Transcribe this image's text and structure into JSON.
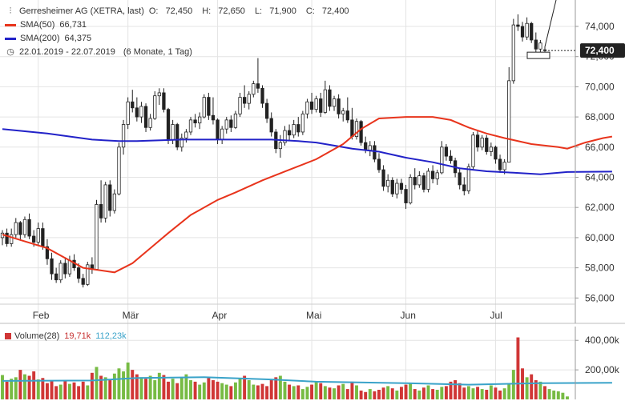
{
  "legend": {
    "title": "Gerresheimer AG (XETRA, last)",
    "o_label": "O:",
    "o_value": "72,450",
    "h_label": "H:",
    "h_value": "72,650",
    "l_label": "L:",
    "l_value": "71,900",
    "c_label": "C:",
    "c_value": "72,400",
    "sma50_label": "SMA(50)",
    "sma50_value": "66,731",
    "sma200_label": "SMA(200)",
    "sma200_value": "64,375",
    "range_label": "22.01.2019 - 22.07.2019",
    "period_label": "(6 Monate, 1 Tag)"
  },
  "volume_legend": {
    "label": "Volume(28)",
    "v1": "19,71k",
    "v2": "112,23k"
  },
  "last_price_label": "72,400",
  "colors": {
    "up": "#7fb043",
    "down": "#d43c3c",
    "sma50": "#e8341c",
    "sma200": "#2222c8",
    "vol_up": "#77bb44",
    "vol_down": "#d03636",
    "vol_ma": "#3aa3c9"
  },
  "chart_data": [
    {
      "type": "candlestick",
      "title": "Gerresheimer AG (XETRA, last)",
      "x_range": [
        "22.01.2019",
        "22.07.2019"
      ],
      "x_ticks": [
        "Feb",
        "Mär",
        "Apr",
        "Mai",
        "Jun",
        "Jul"
      ],
      "y_ticks": [
        "56,000",
        "58,000",
        "60,000",
        "62,000",
        "64,000",
        "66,000",
        "68,000",
        "70,000",
        "72,000",
        "74,000"
      ],
      "ylim": [
        55,
        75.5
      ],
      "grid": true,
      "legend_position": "top-left",
      "candles": [
        [
          60.0,
          60.5,
          59.5,
          60.3
        ],
        [
          60.3,
          60.6,
          59.4,
          59.6
        ],
        [
          59.6,
          60.6,
          59.4,
          60.2
        ],
        [
          60.2,
          61.3,
          60.0,
          61.0
        ],
        [
          61.0,
          61.1,
          59.8,
          60.2
        ],
        [
          60.2,
          61.4,
          60.0,
          61.2
        ],
        [
          61.2,
          61.6,
          59.9,
          60.1
        ],
        [
          60.1,
          60.5,
          59.4,
          59.7
        ],
        [
          59.7,
          61.0,
          59.5,
          60.6
        ],
        [
          60.6,
          61.0,
          59.2,
          59.4
        ],
        [
          59.4,
          59.9,
          58.2,
          58.6
        ],
        [
          58.6,
          59.0,
          57.2,
          57.6
        ],
        [
          57.6,
          58.0,
          57.0,
          57.2
        ],
        [
          57.2,
          58.5,
          57.0,
          58.3
        ],
        [
          58.3,
          58.7,
          57.3,
          57.6
        ],
        [
          57.6,
          58.8,
          57.4,
          58.5
        ],
        [
          58.5,
          58.9,
          57.8,
          58.0
        ],
        [
          58.0,
          58.3,
          57.0,
          57.3
        ],
        [
          57.3,
          57.6,
          56.7,
          56.9
        ],
        [
          56.9,
          58.4,
          56.8,
          58.2
        ],
        [
          58.2,
          58.7,
          57.6,
          57.9
        ],
        [
          57.9,
          62.5,
          57.9,
          62.2
        ],
        [
          62.2,
          63.8,
          61.0,
          61.3
        ],
        [
          61.3,
          63.7,
          61.0,
          63.5
        ],
        [
          63.5,
          63.8,
          61.4,
          61.8
        ],
        [
          61.8,
          63.2,
          61.6,
          62.9
        ],
        [
          62.9,
          66.3,
          62.8,
          66.0
        ],
        [
          66.0,
          67.8,
          65.5,
          67.5
        ],
        [
          67.5,
          69.3,
          67.2,
          69.0
        ],
        [
          69.0,
          69.8,
          68.3,
          68.6
        ],
        [
          68.6,
          69.3,
          67.7,
          68.0
        ],
        [
          68.0,
          69.0,
          67.6,
          68.7
        ],
        [
          68.7,
          68.9,
          67.0,
          67.3
        ],
        [
          67.3,
          68.2,
          67.1,
          67.9
        ],
        [
          67.9,
          69.7,
          67.8,
          69.4
        ],
        [
          69.4,
          69.9,
          68.8,
          69.6
        ],
        [
          69.6,
          69.9,
          68.3,
          68.5
        ],
        [
          68.5,
          68.6,
          66.2,
          66.5
        ],
        [
          66.5,
          67.8,
          66.2,
          67.5
        ],
        [
          67.5,
          67.6,
          65.8,
          66.0
        ],
        [
          66.0,
          66.9,
          65.7,
          66.6
        ],
        [
          66.6,
          67.2,
          66.3,
          67.0
        ],
        [
          67.0,
          68.0,
          66.8,
          67.8
        ],
        [
          67.8,
          68.2,
          67.3,
          67.6
        ],
        [
          67.6,
          68.3,
          67.2,
          68.0
        ],
        [
          68.0,
          69.5,
          67.9,
          69.3
        ],
        [
          69.3,
          69.6,
          67.8,
          68.1
        ],
        [
          68.1,
          69.3,
          67.5,
          67.8
        ],
        [
          67.8,
          67.9,
          66.2,
          66.5
        ],
        [
          66.5,
          67.4,
          66.2,
          67.2
        ],
        [
          67.2,
          68.0,
          66.9,
          67.8
        ],
        [
          67.8,
          68.1,
          67.0,
          67.3
        ],
        [
          67.3,
          68.4,
          67.2,
          68.2
        ],
        [
          68.2,
          69.6,
          68.0,
          69.3
        ],
        [
          69.3,
          70.1,
          68.6,
          68.9
        ],
        [
          68.9,
          69.7,
          68.5,
          69.5
        ],
        [
          69.5,
          70.4,
          69.3,
          70.2
        ],
        [
          70.2,
          71.9,
          69.6,
          69.9
        ],
        [
          69.9,
          70.1,
          68.6,
          68.9
        ],
        [
          68.9,
          69.2,
          67.6,
          67.9
        ],
        [
          67.9,
          68.3,
          66.7,
          67.0
        ],
        [
          67.0,
          67.2,
          65.6,
          65.9
        ],
        [
          65.9,
          66.8,
          65.3,
          66.3
        ],
        [
          66.3,
          67.4,
          66.1,
          67.1
        ],
        [
          67.1,
          67.5,
          66.4,
          66.8
        ],
        [
          66.8,
          67.8,
          66.6,
          67.5
        ],
        [
          67.5,
          68.0,
          66.7,
          67.0
        ],
        [
          67.0,
          68.4,
          66.8,
          68.2
        ],
        [
          68.2,
          69.2,
          67.9,
          69.0
        ],
        [
          69.0,
          69.6,
          68.2,
          68.5
        ],
        [
          68.5,
          69.4,
          68.3,
          69.2
        ],
        [
          69.2,
          69.6,
          68.0,
          68.3
        ],
        [
          68.3,
          70.4,
          68.2,
          69.8
        ],
        [
          69.8,
          70.1,
          68.4,
          68.7
        ],
        [
          68.7,
          69.4,
          68.4,
          69.2
        ],
        [
          69.2,
          69.5,
          67.9,
          68.2
        ],
        [
          68.2,
          68.6,
          67.7,
          68.4
        ],
        [
          68.4,
          69.3,
          67.6,
          67.8
        ],
        [
          67.8,
          68.6,
          66.5,
          66.7
        ],
        [
          66.7,
          67.9,
          66.5,
          67.7
        ],
        [
          67.7,
          67.8,
          66.1,
          66.3
        ],
        [
          66.3,
          66.7,
          65.6,
          65.8
        ],
        [
          65.8,
          66.4,
          65.4,
          66.1
        ],
        [
          66.1,
          66.4,
          65.0,
          65.2
        ],
        [
          65.2,
          65.6,
          64.3,
          64.5
        ],
        [
          64.5,
          64.8,
          63.1,
          63.4
        ],
        [
          63.4,
          64.2,
          63.0,
          63.8
        ],
        [
          63.8,
          64.0,
          62.7,
          62.9
        ],
        [
          62.9,
          63.9,
          62.6,
          63.6
        ],
        [
          63.6,
          63.9,
          62.9,
          63.2
        ],
        [
          63.2,
          63.5,
          61.9,
          62.3
        ],
        [
          62.3,
          64.2,
          62.2,
          64.0
        ],
        [
          64.0,
          64.6,
          63.2,
          63.5
        ],
        [
          63.5,
          64.4,
          63.3,
          64.1
        ],
        [
          64.1,
          64.3,
          63.0,
          63.2
        ],
        [
          63.2,
          64.6,
          63.0,
          64.4
        ],
        [
          64.4,
          64.8,
          63.6,
          63.9
        ],
        [
          63.9,
          64.5,
          63.5,
          64.3
        ],
        [
          64.3,
          66.4,
          64.2,
          66.0
        ],
        [
          66.0,
          66.2,
          65.1,
          65.4
        ],
        [
          65.4,
          65.8,
          64.9,
          65.1
        ],
        [
          65.1,
          65.3,
          64.0,
          64.3
        ],
        [
          64.3,
          64.6,
          63.2,
          63.5
        ],
        [
          63.5,
          64.0,
          62.8,
          63.1
        ],
        [
          63.1,
          64.9,
          62.9,
          64.7
        ],
        [
          64.7,
          67.0,
          64.5,
          66.8
        ],
        [
          66.8,
          67.1,
          65.7,
          66.0
        ],
        [
          66.0,
          66.8,
          65.8,
          66.6
        ],
        [
          66.6,
          66.8,
          65.5,
          65.7
        ],
        [
          65.7,
          66.3,
          65.4,
          66.0
        ],
        [
          66.0,
          66.1,
          64.9,
          65.2
        ],
        [
          65.2,
          65.5,
          64.3,
          64.5
        ],
        [
          64.5,
          65.2,
          64.2,
          65.0
        ],
        [
          65.0,
          71.3,
          65.0,
          70.4
        ],
        [
          70.4,
          74.5,
          70.2,
          74.1
        ],
        [
          74.1,
          74.8,
          73.7,
          74.0
        ],
        [
          74.0,
          74.3,
          73.0,
          73.3
        ],
        [
          73.3,
          74.6,
          73.1,
          74.2
        ],
        [
          74.2,
          74.3,
          72.9,
          73.1
        ],
        [
          73.1,
          73.6,
          72.3,
          72.5
        ],
        [
          72.5,
          73.1,
          72.3,
          72.9
        ],
        [
          72.45,
          72.65,
          71.9,
          72.4
        ]
      ],
      "sma50": [
        [
          0,
          60.2
        ],
        [
          10,
          59.3
        ],
        [
          18,
          58.0
        ],
        [
          25,
          57.7
        ],
        [
          29,
          58.3
        ],
        [
          33,
          59.3
        ],
        [
          37,
          60.3
        ],
        [
          42,
          61.5
        ],
        [
          48,
          62.5
        ],
        [
          52,
          63.0
        ],
        [
          58,
          63.8
        ],
        [
          64,
          64.5
        ],
        [
          70,
          65.2
        ],
        [
          76,
          66.2
        ],
        [
          80,
          67.2
        ],
        [
          84,
          67.9
        ],
        [
          90,
          68.0
        ],
        [
          96,
          68.0
        ],
        [
          100,
          67.8
        ],
        [
          104,
          67.3
        ],
        [
          108,
          66.9
        ],
        [
          112,
          66.6
        ],
        [
          118,
          66.2
        ],
        [
          124,
          66.0
        ],
        [
          126,
          65.9
        ],
        [
          130,
          66.3
        ],
        [
          134,
          66.6
        ],
        [
          136,
          66.7
        ]
      ],
      "sma200": [
        [
          0,
          67.2
        ],
        [
          10,
          66.9
        ],
        [
          20,
          66.5
        ],
        [
          26,
          66.4
        ],
        [
          30,
          66.4
        ],
        [
          40,
          66.5
        ],
        [
          50,
          66.5
        ],
        [
          60,
          66.5
        ],
        [
          66,
          66.4
        ],
        [
          70,
          66.3
        ],
        [
          74,
          66.1
        ],
        [
          78,
          65.9
        ],
        [
          84,
          65.7
        ],
        [
          90,
          65.3
        ],
        [
          96,
          65.0
        ],
        [
          102,
          64.6
        ],
        [
          108,
          64.4
        ],
        [
          114,
          64.3
        ],
        [
          120,
          64.2
        ],
        [
          126,
          64.35
        ],
        [
          136,
          64.375
        ]
      ]
    },
    {
      "type": "bar",
      "title": "Volume(28)",
      "y_ticks": [
        "200,00k",
        "400,00k"
      ],
      "ylim": [
        0,
        450
      ],
      "unit": "k",
      "values": [
        165,
        120,
        140,
        150,
        200,
        170,
        160,
        190,
        135,
        145,
        110,
        125,
        90,
        100,
        130,
        105,
        115,
        90,
        120,
        95,
        180,
        220,
        160,
        150,
        130,
        175,
        210,
        190,
        250,
        200,
        170,
        150,
        140,
        160,
        130,
        180,
        165,
        120,
        140,
        110,
        150,
        170,
        130,
        120,
        100,
        115,
        145,
        130,
        120,
        110,
        100,
        90,
        115,
        140,
        160,
        130,
        100,
        95,
        105,
        90,
        130,
        150,
        160,
        120,
        100,
        90,
        95,
        70,
        85,
        100,
        120,
        110,
        90,
        80,
        75,
        95,
        105,
        70,
        120,
        95,
        60,
        50,
        70,
        55,
        65,
        80,
        90,
        75,
        60,
        85,
        100,
        110,
        70,
        60,
        80,
        95,
        70,
        65,
        85,
        90,
        120,
        130,
        110,
        80,
        90,
        75,
        85,
        70,
        65,
        95,
        80,
        60,
        75,
        110,
        200,
        420,
        210,
        150,
        170,
        130,
        120,
        90,
        70,
        60,
        55,
        45,
        20
      ],
      "vol_ma": [
        [
          0,
          125
        ],
        [
          20,
          128
        ],
        [
          30,
          145
        ],
        [
          45,
          150
        ],
        [
          60,
          135
        ],
        [
          70,
          120
        ],
        [
          90,
          110
        ],
        [
          104,
          100
        ],
        [
          120,
          110
        ],
        [
          136,
          112.23
        ]
      ]
    }
  ]
}
